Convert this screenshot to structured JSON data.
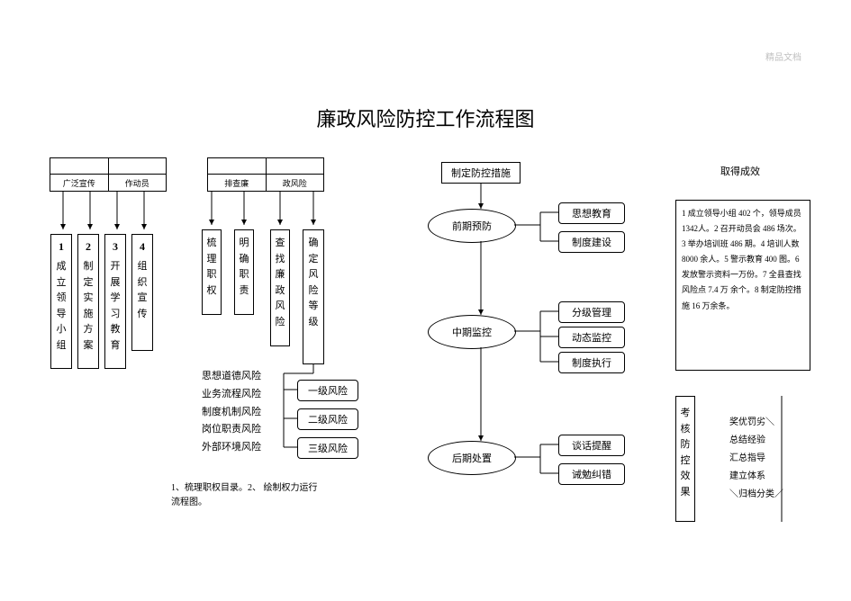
{
  "watermark": "精品文档",
  "title": "廉政风险防控工作流程图",
  "topLeftTable": {
    "cells": [
      "",
      "",
      "广泛宣传",
      "作动员"
    ]
  },
  "topMidTable": {
    "cells": [
      "",
      "",
      "排查廉",
      "政风险"
    ]
  },
  "phase1_boxes": [
    {
      "num": "1",
      "label": "成立领导小组"
    },
    {
      "num": "2",
      "label": "制定实施方案"
    },
    {
      "num": "3",
      "label": "开展学习教育"
    },
    {
      "num": "4",
      "label": "组织宣传"
    }
  ],
  "phase2_boxes": [
    {
      "label": "梳理职权"
    },
    {
      "label": "明确职责"
    },
    {
      "label": "查找廉政风险"
    },
    {
      "label": "确定风险等级"
    }
  ],
  "risk_levels": [
    "一级风险",
    "二级风险",
    "三级风险"
  ],
  "risk_types": [
    "思想道德风险",
    "业务流程风险",
    "制度机制风险",
    "岗位职责风险",
    "外部环境风险"
  ],
  "bottom_note": "1、梳理职权目录。2、 绘制权力运行流程图。",
  "flow_top": "制定防控措施",
  "stages": [
    {
      "name": "前期预防",
      "items": [
        "思想教育",
        "制度建设"
      ]
    },
    {
      "name": "中期监控",
      "items": [
        "分级管理",
        "动态监控",
        "制度执行"
      ]
    },
    {
      "name": "后期处置",
      "items": [
        "谈话提醒",
        "诫勉纠错"
      ]
    }
  ],
  "right_top_title": "取得成效",
  "right_block": "1 成立领导小组 402 个，领导成员 1342人。2 召开动员会 486 场次。3 举办培训班 486 期。4 培训人数 8000 余人。5 警示教育 400 图。6 发放警示资料一万份。7 全县查找风险点 7.4 万 余个。8 制定防控措 施 16 万余条。",
  "right_vbox": "考核防控效果",
  "right_notes": [
    "奖优罚劣＼",
    "总结经验",
    "汇总指导",
    "建立体系",
    "＼归档分类／"
  ],
  "colors": {
    "line": "#000000",
    "bg": "#ffffff"
  }
}
